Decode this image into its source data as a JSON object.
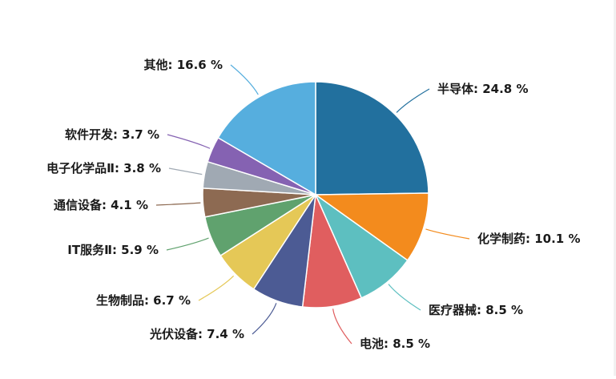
{
  "chart_data": {
    "type": "pie",
    "title": "",
    "unit": "%",
    "slices": [
      {
        "label": "半导体",
        "value": 24.8,
        "text": "半导体: 24.8 %",
        "color": "#22709e"
      },
      {
        "label": "化学制药",
        "value": 10.1,
        "text": "化学制药: 10.1 %",
        "color": "#f38b1d"
      },
      {
        "label": "医疗器械",
        "value": 8.5,
        "text": "医疗器械: 8.5 %",
        "color": "#5dbfc0"
      },
      {
        "label": "电池",
        "value": 8.5,
        "text": "电池: 8.5 %",
        "color": "#e05e5f"
      },
      {
        "label": "光伏设备",
        "value": 7.4,
        "text": "光伏设备: 7.4 %",
        "color": "#4c5b94"
      },
      {
        "label": "生物制品",
        "value": 6.7,
        "text": "生物制品: 6.7 %",
        "color": "#e5c857"
      },
      {
        "label": "IT服务Ⅱ",
        "value": 5.9,
        "text": "IT服务Ⅱ: 5.9 %",
        "color": "#60a26e"
      },
      {
        "label": "通信设备",
        "value": 4.1,
        "text": "通信设备: 4.1 %",
        "color": "#8d6a52"
      },
      {
        "label": "电子化学品Ⅱ",
        "value": 3.8,
        "text": "电子化学品Ⅱ: 3.8 %",
        "color": "#a0a9b3"
      },
      {
        "label": "软件开发",
        "value": 3.7,
        "text": "软件开发: 3.7 %",
        "color": "#8562b2"
      },
      {
        "label": "其他",
        "value": 16.6,
        "text": "其他: 16.6 %",
        "color": "#56aede"
      }
    ]
  }
}
